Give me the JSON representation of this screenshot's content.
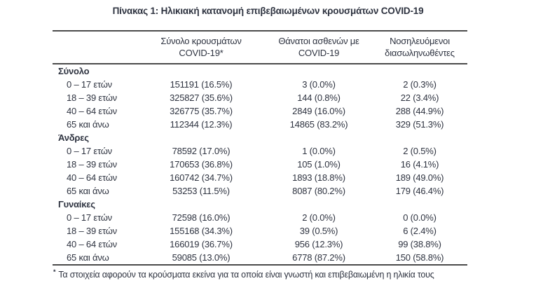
{
  "title": "Πίνακας 1: Ηλικιακή κατανομή επιβεβαιωμένων κρουσμάτων COVID-19",
  "colors": {
    "text": "#2e3340",
    "rule": "#4b4b4b",
    "background": "#ffffff"
  },
  "table": {
    "header": {
      "col1": "",
      "col2_line1": "Σύνολο κρουσμάτων",
      "col2_line2": "COVID-19*",
      "col3_line1": "Θάνατοι ασθενών με",
      "col3_line2": "COVID-19",
      "col4_line1": "Νοσηλευόμενοι",
      "col4_line2": "διασωληνωθέντες"
    },
    "sections": [
      {
        "label": "Σύνολο",
        "rows": [
          {
            "age": "0 – 17 ετών",
            "cases": "151191 (16.5%)",
            "deaths": "3 (0.0%)",
            "intubated": "2 (0.3%)"
          },
          {
            "age": "18 – 39 ετών",
            "cases": "325827 (35.6%)",
            "deaths": "144 (0.8%)",
            "intubated": "22 (3.4%)"
          },
          {
            "age": "40 – 64 ετών",
            "cases": "326775 (35.7%)",
            "deaths": "2849 (16.0%)",
            "intubated": "288 (44.9%)"
          },
          {
            "age": "65 και άνω",
            "cases": "112344 (12.3%)",
            "deaths": "14865 (83.2%)",
            "intubated": "329 (51.3%)"
          }
        ]
      },
      {
        "label": "Άνδρες",
        "rows": [
          {
            "age": "0 – 17 ετών",
            "cases": "78592 (17.0%)",
            "deaths": "1 (0.0%)",
            "intubated": "2 (0.5%)"
          },
          {
            "age": "18 – 39 ετών",
            "cases": "170653 (36.8%)",
            "deaths": "105 (1.0%)",
            "intubated": "16 (4.1%)"
          },
          {
            "age": "40 – 64 ετών",
            "cases": "160742 (34.7%)",
            "deaths": "1893 (18.8%)",
            "intubated": "189 (49.0%)"
          },
          {
            "age": "65 και άνω",
            "cases": "53253 (11.5%)",
            "deaths": "8087 (80.2%)",
            "intubated": "179 (46.4%)"
          }
        ]
      },
      {
        "label": "Γυναίκες",
        "rows": [
          {
            "age": "0 – 17 ετών",
            "cases": "72598 (16.0%)",
            "deaths": "2 (0.0%)",
            "intubated": "0 (0.0%)"
          },
          {
            "age": "18 – 39 ετών",
            "cases": "155168 (34.3%)",
            "deaths": "39 (0.5%)",
            "intubated": "6 (2.4%)"
          },
          {
            "age": "40 – 64 ετών",
            "cases": "166019 (36.7%)",
            "deaths": "956 (12.3%)",
            "intubated": "99 (38.8%)"
          },
          {
            "age": "65 και άνω",
            "cases": "59085 (13.0%)",
            "deaths": "6778 (87.2%)",
            "intubated": "150 (58.8%)"
          }
        ]
      }
    ],
    "footnote": {
      "marker": "*",
      "text": "Τα στοιχεία αφορούν τα κρούσματα εκείνα για τα οποία είναι γνωστή και επιβεβαιωμένη η ηλικία τους"
    }
  }
}
